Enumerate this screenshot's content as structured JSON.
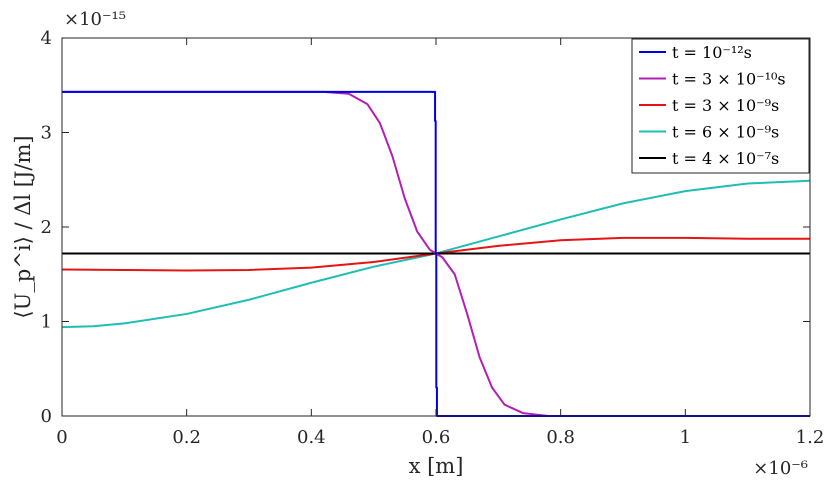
{
  "chart_data": {
    "type": "line",
    "title": "",
    "xlabel": "x [m]",
    "ylabel": "⟨U_p^i⟩ / Δl [J/m]",
    "x_multiplier": "×10⁻⁶",
    "y_multiplier": "×10⁻¹⁵",
    "xlim": [
      0,
      1.2
    ],
    "ylim": [
      0,
      4
    ],
    "x_ticks": [
      "0",
      "0.2",
      "0.4",
      "0.6",
      "0.8",
      "1",
      "1.2"
    ],
    "y_ticks": [
      "0",
      "1",
      "2",
      "3",
      "4"
    ],
    "grid": false,
    "legend_position": "top-right",
    "series": [
      {
        "name": "t = 10⁻¹²s",
        "color": "#0000e6",
        "x": [
          0,
          0.5985,
          0.5985,
          0.5995,
          0.5995,
          0.6005,
          0.6005,
          0.6015,
          0.6015,
          0.75,
          1.2
        ],
        "y": [
          3.43,
          3.43,
          3.12,
          3.12,
          1.72,
          1.72,
          0.3,
          0.3,
          0,
          0,
          0
        ]
      },
      {
        "name": "t = 3 × 10⁻¹⁰s",
        "color": "#b41eb4",
        "x": [
          0,
          0.42,
          0.46,
          0.49,
          0.51,
          0.53,
          0.55,
          0.57,
          0.59,
          0.6,
          0.61,
          0.63,
          0.65,
          0.67,
          0.69,
          0.71,
          0.74,
          0.78,
          0.85,
          1.2
        ],
        "y": [
          3.43,
          3.43,
          3.41,
          3.3,
          3.1,
          2.75,
          2.3,
          1.95,
          1.76,
          1.72,
          1.68,
          1.5,
          1.08,
          0.62,
          0.3,
          0.12,
          0.03,
          0.0,
          0.0,
          0.0
        ]
      },
      {
        "name": "t = 3 × 10⁻⁹s",
        "color": "#e61414",
        "x": [
          0,
          0.1,
          0.2,
          0.3,
          0.4,
          0.5,
          0.6,
          0.7,
          0.8,
          0.9,
          1.0,
          1.1,
          1.2
        ],
        "y": [
          1.55,
          1.545,
          1.54,
          1.545,
          1.57,
          1.63,
          1.72,
          1.8,
          1.86,
          1.885,
          1.885,
          1.875,
          1.875
        ]
      },
      {
        "name": "t = 6 × 10⁻⁹s",
        "color": "#1ebeb4",
        "x": [
          0,
          0.05,
          0.1,
          0.2,
          0.3,
          0.4,
          0.5,
          0.6,
          0.7,
          0.8,
          0.9,
          1.0,
          1.1,
          1.2
        ],
        "y": [
          0.94,
          0.95,
          0.98,
          1.08,
          1.23,
          1.41,
          1.58,
          1.72,
          1.9,
          2.08,
          2.25,
          2.38,
          2.46,
          2.49
        ]
      },
      {
        "name": "t = 4 × 10⁻⁷s",
        "color": "#000000",
        "x": [
          0,
          1.2
        ],
        "y": [
          1.72,
          1.72
        ]
      }
    ]
  }
}
